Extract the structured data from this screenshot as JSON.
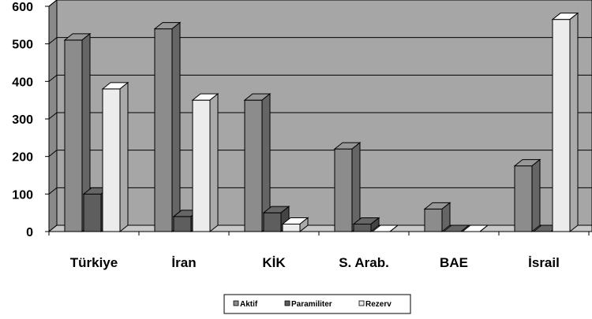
{
  "chart_data": {
    "type": "bar",
    "title": "",
    "xlabel": "",
    "ylabel": "",
    "ylim": [
      0,
      600
    ],
    "yticks": [
      0,
      100,
      200,
      300,
      400,
      500,
      600
    ],
    "grid": true,
    "three_d": true,
    "legend_position": "bottom-center",
    "categories": [
      "Türkiye",
      "İran",
      "KİK",
      "S. Arab.",
      "BAE",
      "İsrail"
    ],
    "series": [
      {
        "name": "Aktif",
        "color": "#8c8c8c",
        "values": [
          510,
          540,
          350,
          220,
          60,
          175
        ]
      },
      {
        "name": "Paramiliter",
        "color": "#5e5e5e",
        "values": [
          100,
          40,
          50,
          20,
          0,
          0
        ]
      },
      {
        "name": "Rezerv",
        "color": "#ececec",
        "values": [
          380,
          350,
          20,
          0,
          0,
          565
        ]
      }
    ]
  }
}
